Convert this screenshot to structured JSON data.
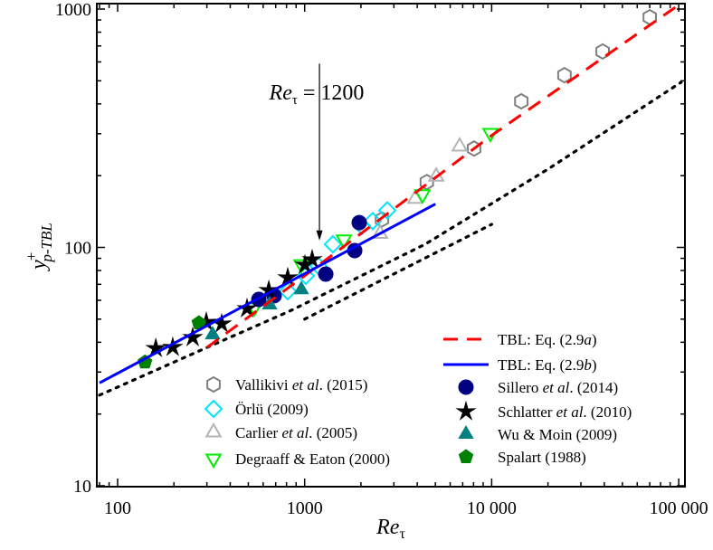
{
  "chart_data": {
    "type": "scatter",
    "xscale": "log",
    "yscale": "log",
    "xlim": [
      80,
      108000
    ],
    "ylim": [
      10,
      1050
    ],
    "grid": false,
    "xlabel": {
      "main": "Re",
      "sub": "τ"
    },
    "ylabel": {
      "main": "y",
      "sup": "+",
      "sub": "p-TBL"
    },
    "xticks": [
      {
        "value": 100,
        "label": "100"
      },
      {
        "value": 1000,
        "label": "1000"
      },
      {
        "value": 10000,
        "label": "10 000"
      },
      {
        "value": 100000,
        "label": "100 000"
      }
    ],
    "yticks": [
      {
        "value": 10,
        "label": "10"
      },
      {
        "value": 100,
        "label": "100"
      },
      {
        "value": 1000,
        "label": "1000"
      }
    ],
    "annotation": {
      "main": "Re",
      "sub": "τ",
      "rest": " = 1200",
      "x": 1200,
      "arrow_from_y": 590,
      "arrow_to_y": 107
    },
    "lines": [
      {
        "name": "TBL: Eq. (2.9a)",
        "label_parts": [
          "TBL: Eq. (2.9",
          "a",
          ")"
        ],
        "style": "dashed",
        "color": "#ff0000",
        "points": [
          [
            300,
            38
          ],
          [
            1000,
            76
          ],
          [
            10000,
            295
          ],
          [
            100000,
            1040
          ]
        ]
      },
      {
        "name": "TBL: Eq. (2.9b)",
        "label_parts": [
          "TBL: Eq. (2.9",
          "b",
          ")"
        ],
        "style": "solid",
        "color": "#0000ff",
        "points": [
          [
            80,
            27
          ],
          [
            5000,
            152
          ]
        ]
      },
      {
        "style": "dotted",
        "color": "#000000",
        "points": [
          [
            80,
            24
          ],
          [
            300,
            38
          ],
          [
            830,
            54
          ],
          [
            4400,
            103
          ],
          [
            20000,
            213
          ],
          [
            103000,
            493
          ]
        ]
      },
      {
        "style": "dotted",
        "color": "#000000",
        "points": [
          [
            1000,
            50
          ],
          [
            10000,
            125
          ]
        ]
      }
    ],
    "series": [
      {
        "name": "Vallikivi et al. (2015)",
        "label_parts": [
          "Vallikivi ",
          "et al",
          ". (2015)"
        ],
        "marker": "hexagon",
        "filled": false,
        "color": "#808080",
        "legend": "left",
        "points": [
          [
            2590,
            131
          ],
          [
            4500,
            188
          ],
          [
            8050,
            260
          ],
          [
            14400,
            410
          ],
          [
            24500,
            528
          ],
          [
            39200,
            664
          ],
          [
            70000,
            924
          ]
        ]
      },
      {
        "name": "Örlü (2009)",
        "label_parts": [
          "Örlü (2009)",
          "",
          ""
        ],
        "marker": "diamond",
        "filled": false,
        "color": "#00e5ff",
        "legend": "left",
        "points": [
          [
            812,
            65.5
          ],
          [
            1014,
            76
          ],
          [
            1186,
            83.5
          ],
          [
            1416,
            103
          ],
          [
            2024,
            123
          ],
          [
            2312,
            129
          ],
          [
            2765,
            143
          ]
        ]
      },
      {
        "name": "Carlier et al. (2005)",
        "label_parts": [
          "Carlier ",
          "et al",
          ". (2005)"
        ],
        "marker": "triangle-up",
        "filled": false,
        "color": "#b4b4b4",
        "legend": "left",
        "points": [
          [
            2530,
            114
          ],
          [
            3900,
            160
          ],
          [
            5050,
            198
          ],
          [
            6740,
            265
          ]
        ]
      },
      {
        "name": "Degraaff & Eaton (2000)",
        "label_parts": [
          "Degraaff & Eaton (2000)",
          "",
          ""
        ],
        "marker": "triangle-down",
        "filled": false,
        "color": "#00ee00",
        "legend": "left",
        "points": [
          [
            538,
            56
          ],
          [
            960,
            85
          ],
          [
            1620,
            108
          ],
          [
            4270,
            167
          ],
          [
            9840,
            302
          ]
        ]
      },
      {
        "name": "Sillero et al. (2014)",
        "label_parts": [
          "Sillero ",
          "et al",
          ". (2014)"
        ],
        "marker": "circle",
        "filled": true,
        "color": "#000080",
        "legend": "right",
        "points": [
          [
            569,
            60.5
          ],
          [
            687,
            62.7
          ],
          [
            1297,
            77.3
          ],
          [
            1852,
            97
          ],
          [
            1958,
            127
          ]
        ]
      },
      {
        "name": "Schlatter et al. (2010)",
        "label_parts": [
          "Schlatter ",
          "et al",
          ". (2010)"
        ],
        "marker": "star",
        "filled": true,
        "color": "#000000",
        "legend": "right",
        "points": [
          [
            160,
            37.7
          ],
          [
            197,
            38.1
          ],
          [
            252,
            41.9
          ],
          [
            298,
            48.6
          ],
          [
            360,
            47.8
          ],
          [
            492,
            55.4
          ],
          [
            643,
            66
          ],
          [
            812,
            74.6
          ],
          [
            1003,
            84.4
          ],
          [
            1097,
            88.9
          ]
        ]
      },
      {
        "name": "Wu & Moin (2009)",
        "label_parts": [
          "Wu & Moin (2009)",
          "",
          ""
        ],
        "marker": "triangle-up",
        "filled": true,
        "color": "#008080",
        "legend": "right",
        "points": [
          [
            322,
            43
          ],
          [
            650,
            57.4
          ],
          [
            960,
            66.5
          ]
        ]
      },
      {
        "name": "Spalart (1988)",
        "label_parts": [
          "Spalart (1988)",
          "",
          ""
        ],
        "marker": "pentagon",
        "filled": true,
        "color": "#007f00",
        "legend": "right",
        "points": [
          [
            140,
            33
          ],
          [
            272,
            48.2
          ]
        ]
      }
    ]
  }
}
